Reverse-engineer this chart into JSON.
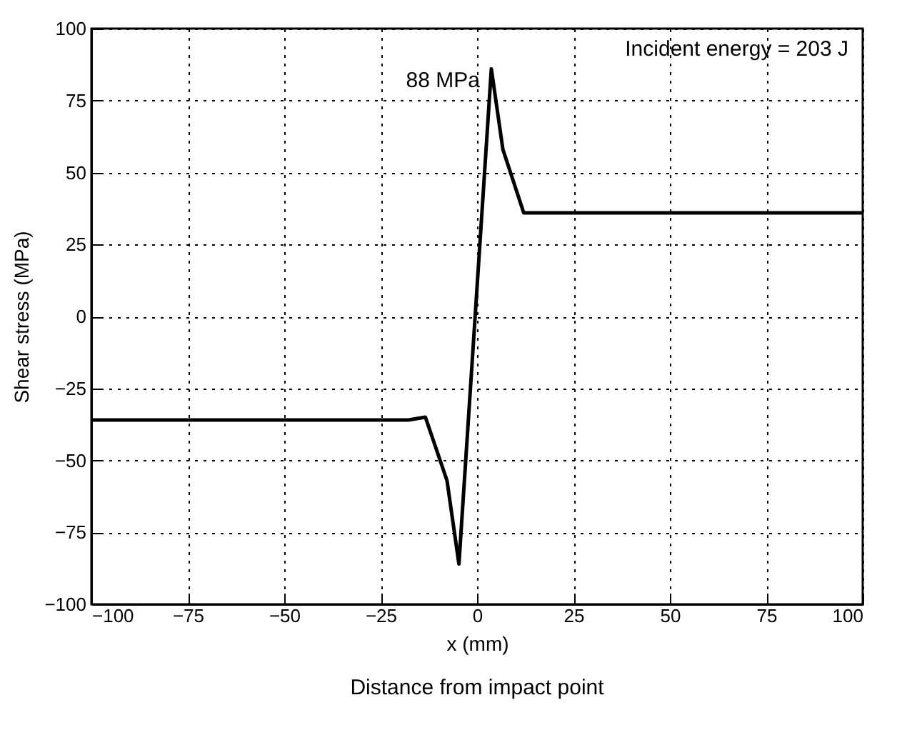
{
  "chart_data": {
    "type": "line",
    "xlabel": "x (mm)",
    "ylabel": "Shear stress (MPa)",
    "x": [
      -100,
      -17.8,
      -13.4,
      -7.8,
      -4.7,
      3.7,
      6.7,
      12.1,
      16.4,
      100
    ],
    "series": [
      {
        "color": "#000000",
        "values": [
          -36,
          -36,
          -35,
          -57,
          -86,
          86,
          58,
          36,
          36,
          36
        ]
      }
    ],
    "xlim": [
      -100,
      100
    ],
    "xticks": [
      -100,
      -75,
      -50,
      -25,
      0,
      25,
      50,
      75,
      100
    ],
    "ylim": [
      -100,
      100
    ],
    "yticks": [
      -100,
      -75,
      -50,
      -25,
      0,
      25,
      50,
      75,
      100
    ],
    "grid": true,
    "marker": "none",
    "line_style": "solid",
    "annotations": [
      {
        "text": "88 MPa",
        "x": 3.7,
        "y": 86
      },
      "Incident energy = 203 J",
      "Distance from impact point"
    ]
  }
}
